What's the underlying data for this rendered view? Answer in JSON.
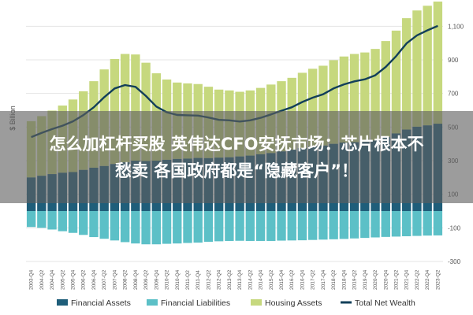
{
  "chart_data": {
    "type": "bar",
    "ylabel": "$ Billion",
    "y_ticks": [
      "1,100",
      "900",
      "700",
      "500",
      "300",
      "100",
      "-100",
      "-300"
    ],
    "y_tick_values": [
      1100,
      900,
      700,
      500,
      300,
      100,
      -100,
      -300
    ],
    "ylim": [
      -300,
      1200
    ],
    "grid": true,
    "legend_position": "bottom",
    "categories": [
      "2003-Q4",
      "2004-Q2",
      "2004-Q4",
      "2005-Q2",
      "2005-Q4",
      "2006-Q2",
      "2006-Q4",
      "2007-Q2",
      "2007-Q4",
      "2008-Q2",
      "2008-Q4",
      "2009-Q2",
      "2009-Q4",
      "2010-Q2",
      "2010-Q4",
      "2011-Q2",
      "2011-Q4",
      "2012-Q2",
      "2012-Q4",
      "2013-Q2",
      "2013-Q4",
      "2014-Q2",
      "2014-Q4",
      "2015-Q2",
      "2015-Q4",
      "2016-Q2",
      "2016-Q4",
      "2017-Q2",
      "2017-Q4",
      "2018-Q2",
      "2018-Q4",
      "2019-Q2",
      "2019-Q4",
      "2020-Q2",
      "2020-Q4",
      "2021-Q2",
      "2021-Q4",
      "2022-Q2",
      "2022-Q4",
      "2023-Q2"
    ],
    "series": [
      {
        "name": "Financial Assets",
        "color": "#1f5e7a",
        "type": "bar",
        "values": [
          200,
          210,
          220,
          228,
          232,
          245,
          258,
          268,
          280,
          290,
          300,
          298,
          300,
          305,
          310,
          312,
          316,
          315,
          318,
          320,
          325,
          330,
          338,
          345,
          355,
          365,
          375,
          385,
          390,
          400,
          408,
          410,
          412,
          420,
          440,
          462,
          485,
          502,
          510,
          520
        ]
      },
      {
        "name": "Financial Liabilities",
        "color": "#5cc0c7",
        "type": "bar",
        "values": [
          -95,
          -100,
          -110,
          -120,
          -130,
          -142,
          -155,
          -165,
          -175,
          -185,
          -193,
          -198,
          -198,
          -195,
          -193,
          -190,
          -188,
          -183,
          -180,
          -178,
          -177,
          -178,
          -178,
          -178,
          -176,
          -175,
          -174,
          -172,
          -170,
          -168,
          -166,
          -163,
          -160,
          -157,
          -154,
          -152,
          -150,
          -148,
          -146,
          -145
        ]
      },
      {
        "name": "Housing Assets",
        "color": "#c6d87e",
        "type": "bar",
        "values": [
          335,
          355,
          378,
          400,
          432,
          468,
          515,
          575,
          625,
          645,
          632,
          585,
          520,
          478,
          455,
          448,
          440,
          425,
          405,
          398,
          385,
          388,
          395,
          408,
          418,
          428,
          448,
          462,
          475,
          498,
          512,
          525,
          532,
          545,
          572,
          612,
          663,
          692,
          712,
          727
        ]
      },
      {
        "name": "Total Net Wealth",
        "color": "#123f5a",
        "type": "line",
        "values": [
          440,
          465,
          488,
          508,
          534,
          571,
          618,
          678,
          730,
          750,
          739,
          685,
          622,
          588,
          572,
          570,
          568,
          557,
          543,
          540,
          533,
          540,
          555,
          575,
          597,
          618,
          649,
          675,
          695,
          730,
          754,
          772,
          784,
          808,
          858,
          922,
          998,
          1046,
          1076,
          1102
        ]
      }
    ],
    "title": ""
  },
  "overlay": {
    "line1": "怎么加杠杆买股 英伟达CFO安抚市场：芯片根本不",
    "line2": "愁卖 各国政府都是“隐藏客户”！"
  }
}
